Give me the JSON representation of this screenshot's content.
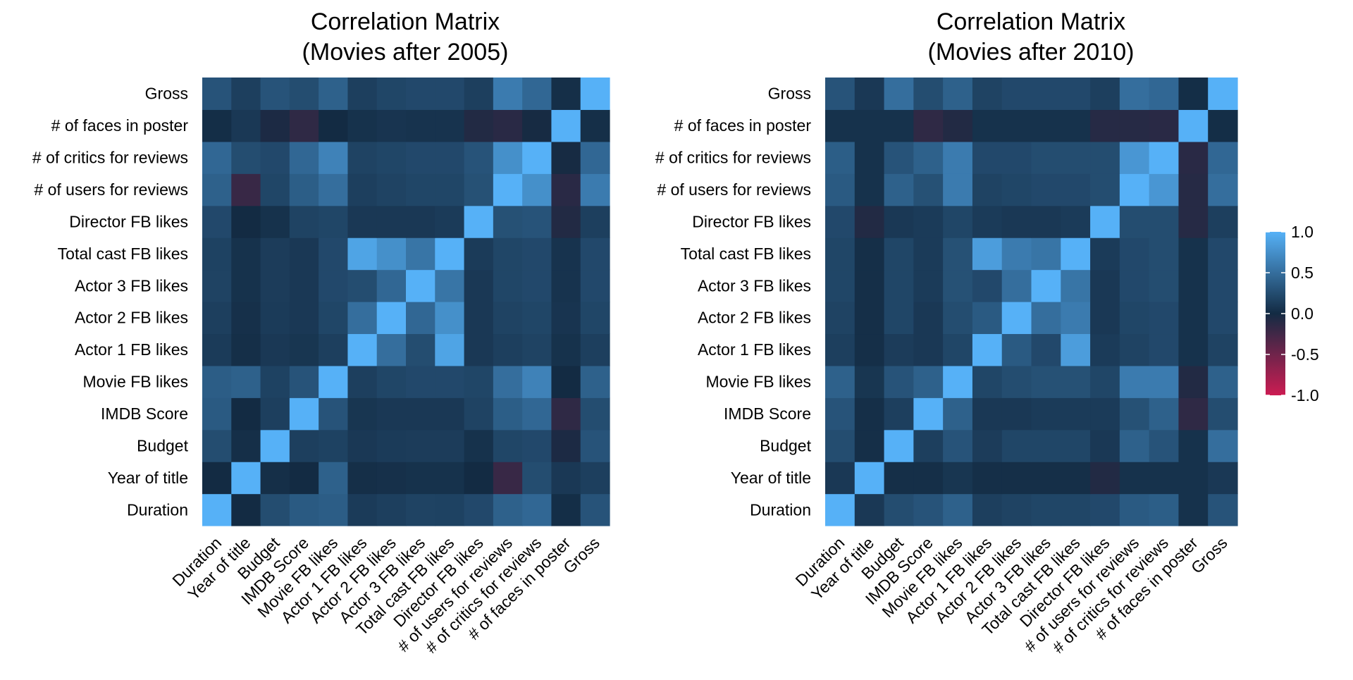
{
  "chart_data": [
    {
      "type": "heatmap",
      "title_line1": "Correlation Matrix",
      "title_line2": "(Movies after 2005)",
      "variables": [
        "Duration",
        "Year of title",
        "Budget",
        "IMDB Score",
        "Movie FB likes",
        "Actor 1 FB likes",
        "Actor 2 FB likes",
        "Actor 3 FB likes",
        "Total cast FB likes",
        "Director FB likes",
        "# of users for reviews",
        "# of critics for reviews",
        "# of faces in poster",
        "Gross"
      ],
      "matrix": [
        [
          1.0,
          0.0,
          0.25,
          0.35,
          0.37,
          0.12,
          0.15,
          0.18,
          0.17,
          0.22,
          0.4,
          0.45,
          0.02,
          0.3
        ],
        [
          0.0,
          1.0,
          0.03,
          0.0,
          0.4,
          0.03,
          0.04,
          0.05,
          0.05,
          0.0,
          -0.2,
          0.25,
          0.1,
          0.15
        ],
        [
          0.25,
          0.03,
          1.0,
          0.15,
          0.17,
          0.1,
          0.12,
          0.13,
          0.13,
          0.05,
          0.2,
          0.22,
          -0.05,
          0.3
        ],
        [
          0.35,
          0.0,
          0.15,
          1.0,
          0.3,
          0.08,
          0.1,
          0.1,
          0.1,
          0.18,
          0.38,
          0.45,
          -0.15,
          0.25
        ],
        [
          0.37,
          0.4,
          0.17,
          0.3,
          1.0,
          0.15,
          0.2,
          0.22,
          0.22,
          0.2,
          0.5,
          0.65,
          0.0,
          0.4
        ],
        [
          0.12,
          0.03,
          0.1,
          0.08,
          0.15,
          1.0,
          0.5,
          0.25,
          0.9,
          0.1,
          0.15,
          0.18,
          0.05,
          0.15
        ],
        [
          0.15,
          0.04,
          0.12,
          0.1,
          0.2,
          0.5,
          1.0,
          0.45,
          0.75,
          0.1,
          0.18,
          0.2,
          0.07,
          0.2
        ],
        [
          0.18,
          0.05,
          0.13,
          0.1,
          0.22,
          0.25,
          0.45,
          1.0,
          0.55,
          0.1,
          0.2,
          0.22,
          0.06,
          0.22
        ],
        [
          0.17,
          0.05,
          0.13,
          0.1,
          0.22,
          0.9,
          0.75,
          0.55,
          1.0,
          0.12,
          0.2,
          0.22,
          0.06,
          0.22
        ],
        [
          0.22,
          0.0,
          0.05,
          0.18,
          0.2,
          0.1,
          0.1,
          0.1,
          0.12,
          1.0,
          0.28,
          0.3,
          -0.08,
          0.15
        ],
        [
          0.4,
          -0.2,
          0.2,
          0.38,
          0.5,
          0.15,
          0.18,
          0.2,
          0.2,
          0.28,
          1.0,
          0.75,
          -0.12,
          0.6
        ],
        [
          0.45,
          0.25,
          0.22,
          0.45,
          0.65,
          0.18,
          0.2,
          0.22,
          0.22,
          0.3,
          0.75,
          1.0,
          -0.02,
          0.45
        ],
        [
          0.02,
          0.1,
          -0.05,
          -0.15,
          0.0,
          0.05,
          0.07,
          0.06,
          0.06,
          -0.08,
          -0.12,
          -0.02,
          1.0,
          0.03
        ],
        [
          0.3,
          0.15,
          0.3,
          0.25,
          0.4,
          0.15,
          0.2,
          0.22,
          0.22,
          0.15,
          0.6,
          0.45,
          0.03,
          1.0
        ]
      ]
    },
    {
      "type": "heatmap",
      "title_line1": "Correlation Matrix",
      "title_line2": "(Movies after 2010)",
      "variables": [
        "Duration",
        "Year of title",
        "Budget",
        "IMDB Score",
        "Movie FB likes",
        "Actor 1 FB likes",
        "Actor 2 FB likes",
        "Actor 3 FB likes",
        "Total cast FB likes",
        "Director FB likes",
        "# of users for reviews",
        "# of critics for reviews",
        "# of faces in poster",
        "Gross"
      ],
      "matrix": [
        [
          1.0,
          0.1,
          0.25,
          0.3,
          0.4,
          0.15,
          0.18,
          0.2,
          0.2,
          0.22,
          0.35,
          0.38,
          0.05,
          0.3
        ],
        [
          0.1,
          1.0,
          0.03,
          0.03,
          0.08,
          0.03,
          0.03,
          0.03,
          0.03,
          -0.08,
          0.05,
          0.05,
          0.05,
          0.1
        ],
        [
          0.25,
          0.03,
          1.0,
          0.15,
          0.3,
          0.13,
          0.2,
          0.2,
          0.2,
          0.1,
          0.4,
          0.3,
          0.05,
          0.5
        ],
        [
          0.3,
          0.03,
          0.15,
          1.0,
          0.4,
          0.1,
          0.1,
          0.12,
          0.12,
          0.12,
          0.28,
          0.4,
          -0.15,
          0.25
        ],
        [
          0.4,
          0.08,
          0.3,
          0.4,
          1.0,
          0.2,
          0.25,
          0.28,
          0.28,
          0.2,
          0.6,
          0.6,
          -0.08,
          0.4
        ],
        [
          0.15,
          0.03,
          0.13,
          0.1,
          0.2,
          1.0,
          0.35,
          0.22,
          0.85,
          0.12,
          0.18,
          0.22,
          0.05,
          0.18
        ],
        [
          0.18,
          0.03,
          0.2,
          0.1,
          0.25,
          0.35,
          1.0,
          0.5,
          0.6,
          0.1,
          0.2,
          0.22,
          0.05,
          0.22
        ],
        [
          0.2,
          0.03,
          0.2,
          0.12,
          0.28,
          0.22,
          0.5,
          1.0,
          0.55,
          0.1,
          0.22,
          0.25,
          0.05,
          0.22
        ],
        [
          0.2,
          0.03,
          0.2,
          0.12,
          0.28,
          0.85,
          0.6,
          0.55,
          1.0,
          0.12,
          0.22,
          0.25,
          0.05,
          0.22
        ],
        [
          0.22,
          -0.08,
          0.1,
          0.12,
          0.2,
          0.12,
          0.1,
          0.1,
          0.12,
          1.0,
          0.25,
          0.25,
          -0.1,
          0.15
        ],
        [
          0.35,
          0.05,
          0.4,
          0.28,
          0.6,
          0.18,
          0.2,
          0.22,
          0.22,
          0.25,
          1.0,
          0.8,
          -0.1,
          0.5
        ],
        [
          0.38,
          0.05,
          0.3,
          0.4,
          0.6,
          0.22,
          0.22,
          0.25,
          0.25,
          0.25,
          0.8,
          1.0,
          -0.12,
          0.45
        ],
        [
          0.05,
          0.05,
          0.05,
          -0.15,
          -0.08,
          0.05,
          0.05,
          0.05,
          0.05,
          -0.1,
          -0.1,
          -0.12,
          1.0,
          0.02
        ],
        [
          0.3,
          0.1,
          0.5,
          0.25,
          0.4,
          0.18,
          0.22,
          0.22,
          0.22,
          0.15,
          0.5,
          0.45,
          0.02,
          1.0
        ]
      ]
    }
  ],
  "legend": {
    "ticks": [
      1.0,
      0.5,
      0.0,
      -0.5,
      -1.0
    ],
    "tick_labels": [
      "1.0",
      "0.5",
      "0.0",
      "-0.5",
      "-1.0"
    ],
    "colors": {
      "high": "#56B1F7",
      "mid": "#132B43",
      "low": "#CC1C52"
    }
  }
}
